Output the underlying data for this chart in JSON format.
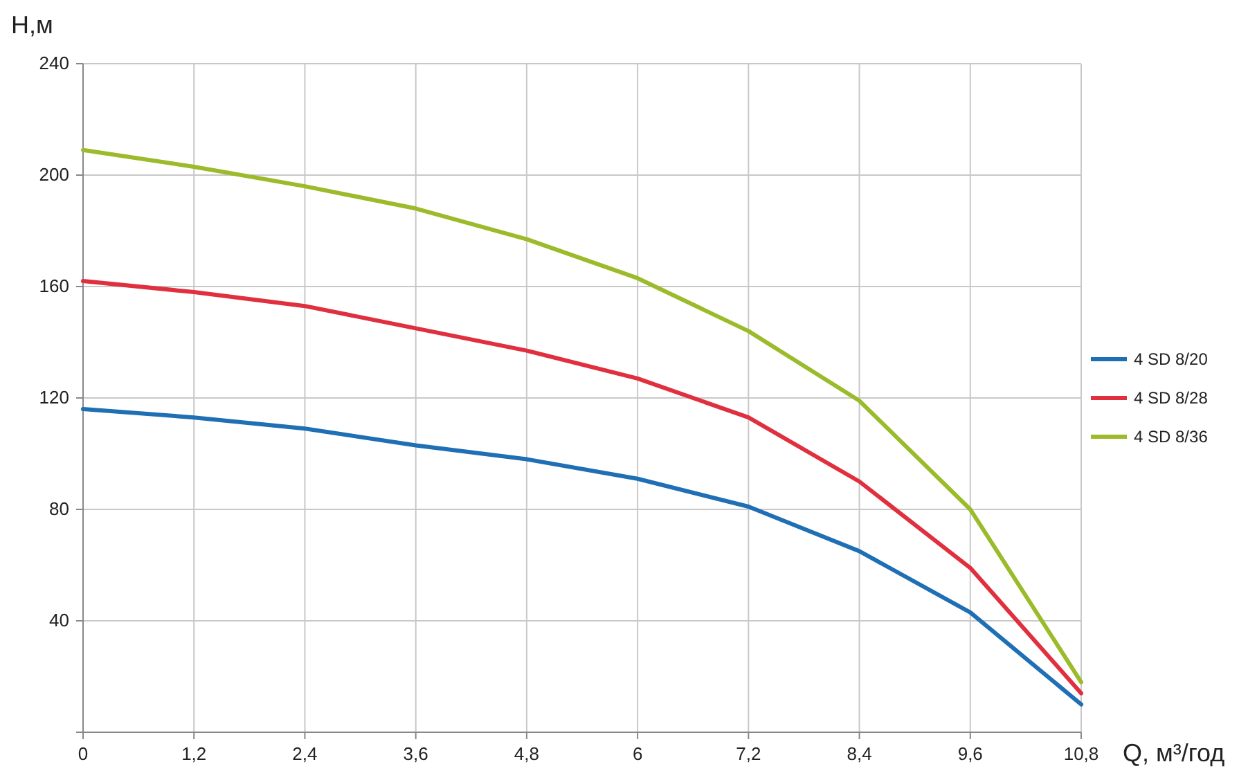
{
  "chart_data": {
    "type": "line",
    "xlabel": "Q, м³/год",
    "ylabel": "H,м",
    "x": [
      0,
      1.2,
      2.4,
      3.6,
      4.8,
      6,
      7.2,
      8.4,
      9.6,
      10.8
    ],
    "series": [
      {
        "name": "4 SD 8/20",
        "color": "#1f6fb5",
        "values": [
          116,
          113,
          109,
          103,
          98,
          91,
          81,
          65,
          43,
          10
        ]
      },
      {
        "name": "4 SD 8/28",
        "color": "#e0303f",
        "values": [
          162,
          158,
          153,
          145,
          137,
          127,
          113,
          90,
          59,
          14
        ]
      },
      {
        "name": "4 SD 8/36",
        "color": "#9bbb2a",
        "values": [
          209,
          203,
          196,
          188,
          177,
          163,
          144,
          119,
          80,
          18
        ]
      }
    ],
    "xlim": [
      0,
      10.8
    ],
    "ylim": [
      0,
      240
    ],
    "xticks": [
      0,
      {
        "value": 1.2,
        "label": "1,2"
      },
      {
        "value": 2.4,
        "label": "2,4"
      },
      {
        "value": 3.6,
        "label": "3,6"
      },
      {
        "value": 4.8,
        "label": "4,8"
      },
      6,
      {
        "value": 7.2,
        "label": "7,2"
      },
      {
        "value": 8.4,
        "label": "8,4"
      },
      {
        "value": 9.6,
        "label": "9,6"
      },
      {
        "value": 10.8,
        "label": "10,8"
      }
    ],
    "yticks": [
      {
        "value": 0,
        "label": null
      },
      40,
      80,
      120,
      160,
      200,
      240
    ],
    "grid": true,
    "legend": "right",
    "marker": "none",
    "line_style": "solid"
  }
}
